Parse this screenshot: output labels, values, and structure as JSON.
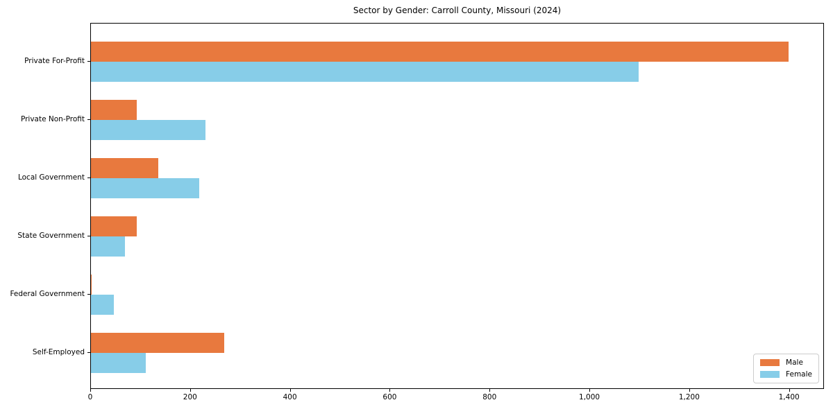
{
  "chart_data": {
    "type": "bar",
    "orientation": "horizontal",
    "title": "Sector by Gender: Carroll County, Missouri (2024)",
    "categories": [
      "Private For-Profit",
      "Private Non-Profit",
      "Local Government",
      "State Government",
      "Federal Government",
      "Self-Employed"
    ],
    "series": [
      {
        "name": "Male",
        "color": "#E8793E",
        "values": [
          1400,
          92,
          135,
          92,
          2,
          268
        ]
      },
      {
        "name": "Female",
        "color": "#87CDE8",
        "values": [
          1100,
          230,
          218,
          68,
          46,
          110
        ]
      }
    ],
    "xlabel": "",
    "ylabel": "",
    "xlim": [
      0,
      1470
    ],
    "xticks": [
      0,
      200,
      400,
      600,
      800,
      1000,
      1200,
      1400
    ],
    "xtick_labels": [
      "0",
      "200",
      "400",
      "600",
      "800",
      "1,000",
      "1,200",
      "1,400"
    ],
    "grid": false,
    "legend_position": "lower right",
    "frame": true
  },
  "legend": {
    "items": [
      {
        "label": "Male"
      },
      {
        "label": "Female"
      }
    ]
  }
}
